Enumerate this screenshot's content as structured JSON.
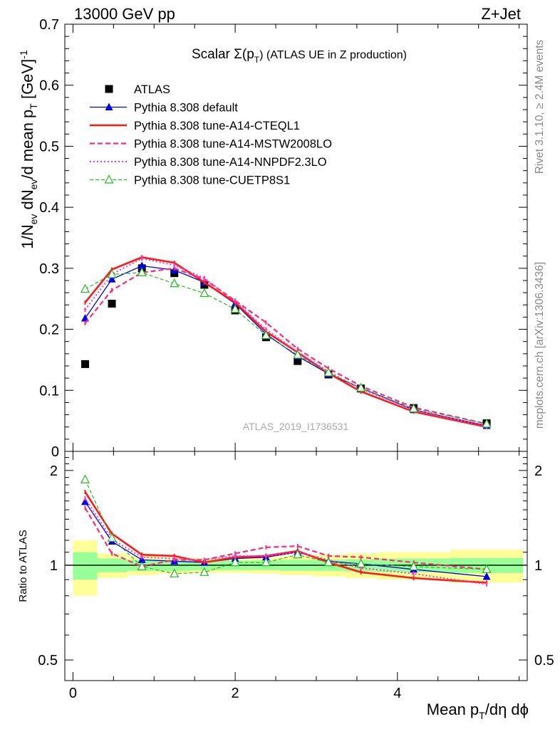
{
  "header": {
    "energy_label": "13000 GeV pp",
    "process_label": "Z+Jet",
    "side_label_1": "Rivet 3.1.10, ≥ 2.4M events",
    "side_label_2": "mcplots.cern.ch [arXiv:1306.3436]",
    "analysis_id": "ATLAS_2019_I1736531"
  },
  "colors": {
    "data": "#000000",
    "default": "#0000e6",
    "a14_cteql1": "#ff1a1a",
    "a14_mstw": "#ff2a7a",
    "a14_nnpdf": "#ff33cc",
    "cuetp8s1": "#22bb22",
    "band_inner": "#99ff99",
    "band_outer": "#ffff99"
  },
  "chart_data": [
    {
      "type": "scatter",
      "panel": "main",
      "title_main": "Scalar Σ(p",
      "title_sub": "T",
      "title_rest": ") (ATLAS UE in Z production)",
      "ylabel": "1/N",
      "ylim": [
        0,
        0.7
      ],
      "xlim": [
        -0.1,
        5.6
      ],
      "yticks": [
        "0",
        "0.1",
        "0.2",
        "0.3",
        "0.4",
        "0.5",
        "0.6",
        "0.7"
      ],
      "legend_position": "top-left",
      "x": [
        0.15,
        0.48,
        0.85,
        1.25,
        1.62,
        2.0,
        2.38,
        2.77,
        3.15,
        3.55,
        4.2,
        5.1
      ],
      "series": [
        {
          "name": "ATLAS",
          "key": "data",
          "style": "square",
          "values": [
            0.143,
            0.242,
            0.3,
            0.292,
            0.273,
            0.231,
            0.187,
            0.148,
            0.126,
            0.103,
            0.071,
            0.046
          ]
        },
        {
          "name": "Pythia 8.308 default",
          "key": "default",
          "style": "solid-thin-triangle",
          "values": [
            0.218,
            0.282,
            0.304,
            0.297,
            0.277,
            0.242,
            0.192,
            0.156,
            0.127,
            0.104,
            0.068,
            0.042
          ]
        },
        {
          "name": "Pythia 8.308 tune-A14-CTEQL1",
          "key": "a14_cteql1",
          "style": "solid-thick",
          "values": [
            0.244,
            0.298,
            0.318,
            0.309,
            0.277,
            0.244,
            0.196,
            0.162,
            0.128,
            0.098,
            0.065,
            0.04
          ]
        },
        {
          "name": "Pythia 8.308 tune-A14-MSTW2008LO",
          "key": "a14_mstw",
          "style": "dashed",
          "values": [
            0.21,
            0.264,
            0.293,
            0.3,
            0.282,
            0.247,
            0.211,
            0.168,
            0.136,
            0.107,
            0.072,
            0.045
          ]
        },
        {
          "name": "Pythia 8.308 tune-A14-NNPDF2.3LO",
          "key": "a14_nnpdf",
          "style": "dotted",
          "values": [
            0.232,
            0.29,
            0.316,
            0.305,
            0.284,
            0.246,
            0.2,
            0.163,
            0.131,
            0.102,
            0.068,
            0.041
          ]
        },
        {
          "name": "Pythia 8.308 tune-CUETP8S1",
          "key": "cuetp8s1",
          "style": "dashed-thin-open-triangle",
          "values": [
            0.266,
            0.29,
            0.293,
            0.275,
            0.259,
            0.233,
            0.19,
            0.158,
            0.129,
            0.104,
            0.07,
            0.045
          ]
        }
      ]
    },
    {
      "type": "line",
      "panel": "ratio",
      "ylabel": "Ratio to ATLAS",
      "xlabel": "Mean p",
      "xlabel_sub": "T",
      "xlabel_rest": "/dη dϕ",
      "ylim": [
        0.43,
        2.3
      ],
      "xlim": [
        -0.1,
        5.6
      ],
      "xticks": [
        "0",
        "2",
        "4"
      ],
      "yticks": [
        "0.5",
        "1",
        "2"
      ],
      "x": [
        0.15,
        0.48,
        0.85,
        1.25,
        1.62,
        2.0,
        2.38,
        2.77,
        3.15,
        3.55,
        4.2,
        5.1
      ],
      "bands": {
        "edges": [
          0.0,
          0.3,
          0.67,
          1.05,
          1.45,
          1.8,
          2.2,
          2.55,
          2.95,
          3.35,
          3.75,
          4.65,
          5.55
        ],
        "inner": [
          0.1,
          0.05,
          0.04,
          0.04,
          0.035,
          0.035,
          0.035,
          0.04,
          0.04,
          0.045,
          0.05,
          0.055
        ],
        "outer": [
          0.2,
          0.09,
          0.07,
          0.06,
          0.055,
          0.055,
          0.06,
          0.07,
          0.08,
          0.09,
          0.1,
          0.12
        ]
      },
      "series": [
        {
          "name": "Pythia 8.308 default",
          "key": "default",
          "style": "solid-thin-triangle",
          "values": [
            1.59,
            1.19,
            1.04,
            1.03,
            1.02,
            1.05,
            1.06,
            1.1,
            1.03,
            1.01,
            0.97,
            0.92
          ]
        },
        {
          "name": "Pythia 8.308 tune-A14-CTEQL1",
          "key": "a14_cteql1",
          "style": "solid-thick",
          "values": [
            1.71,
            1.26,
            1.08,
            1.07,
            1.02,
            1.06,
            1.07,
            1.11,
            1.02,
            0.95,
            0.91,
            0.88
          ]
        },
        {
          "name": "Pythia 8.308 tune-A14-MSTW2008LO",
          "key": "a14_mstw",
          "style": "dashed",
          "values": [
            1.52,
            1.09,
            0.99,
            1.04,
            1.04,
            1.09,
            1.14,
            1.15,
            1.07,
            1.06,
            1.02,
            0.97
          ]
        },
        {
          "name": "Pythia 8.308 tune-A14-NNPDF2.3LO",
          "key": "a14_nnpdf",
          "style": "dotted",
          "values": [
            1.63,
            1.21,
            1.06,
            1.05,
            1.04,
            1.07,
            1.07,
            1.1,
            1.04,
            0.98,
            0.94,
            0.87
          ]
        },
        {
          "name": "Pythia 8.308 tune-CUETP8S1",
          "key": "cuetp8s1",
          "style": "dashed-thin-open-triangle",
          "values": [
            1.87,
            1.22,
            0.99,
            0.94,
            0.95,
            1.02,
            1.02,
            1.08,
            1.02,
            1.01,
            0.99,
            0.97
          ]
        }
      ]
    }
  ]
}
